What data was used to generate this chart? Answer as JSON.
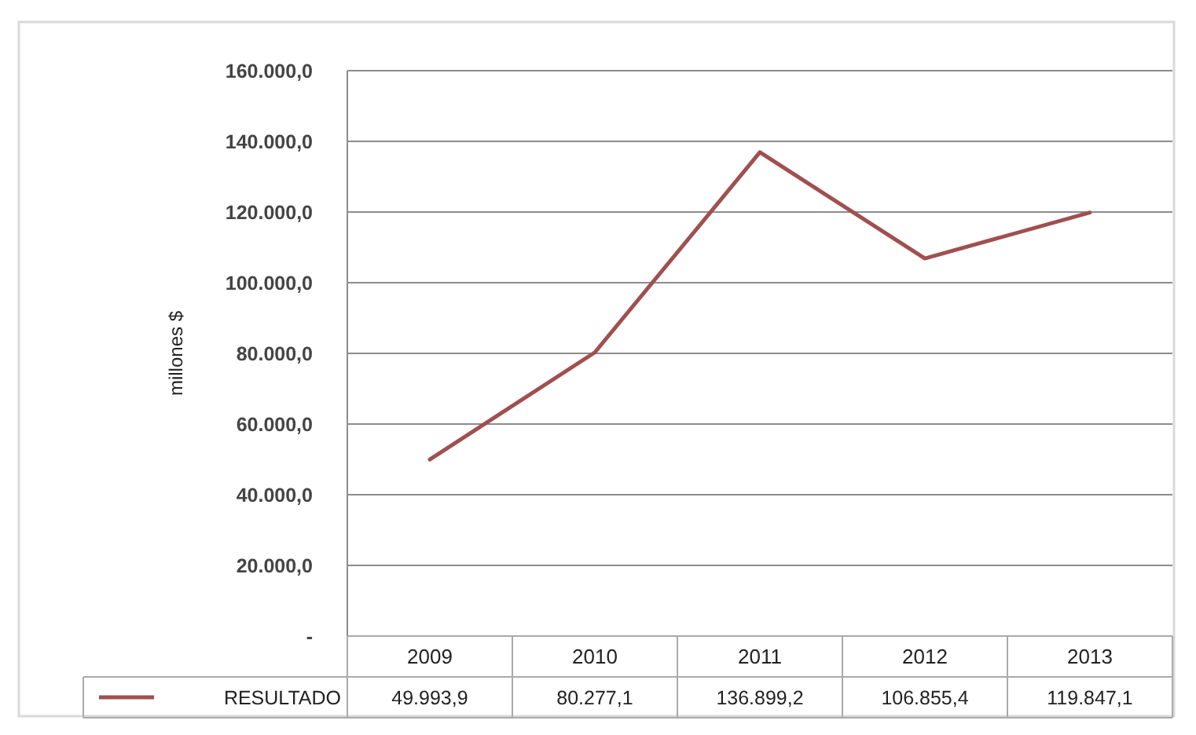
{
  "chart_data": {
    "type": "line",
    "ylabel": "millones $",
    "categories": [
      "2009",
      "2010",
      "2011",
      "2012",
      "2013"
    ],
    "series": [
      {
        "name": "RESULTADO",
        "color": "#a0504f",
        "values": [
          49993.9,
          80277.1,
          136899.2,
          106855.4,
          119847.1
        ],
        "value_labels": [
          "49.993,9",
          "80.277,1",
          "136.899,2",
          "106.855,4",
          "119.847,1"
        ]
      }
    ],
    "ylim": [
      0,
      160000
    ],
    "yticks": [
      {
        "value": 0,
        "label": "-"
      },
      {
        "value": 20000,
        "label": "20.000,0"
      },
      {
        "value": 40000,
        "label": "40.000,0"
      },
      {
        "value": 60000,
        "label": "60.000,0"
      },
      {
        "value": 80000,
        "label": "80.000,0"
      },
      {
        "value": 100000,
        "label": "100.000,0"
      },
      {
        "value": 120000,
        "label": "120.000,0"
      },
      {
        "value": 140000,
        "label": "140.000,0"
      },
      {
        "value": 160000,
        "label": "160.000,0"
      }
    ],
    "grid": "y",
    "marker": "none",
    "line_style": "solid"
  }
}
